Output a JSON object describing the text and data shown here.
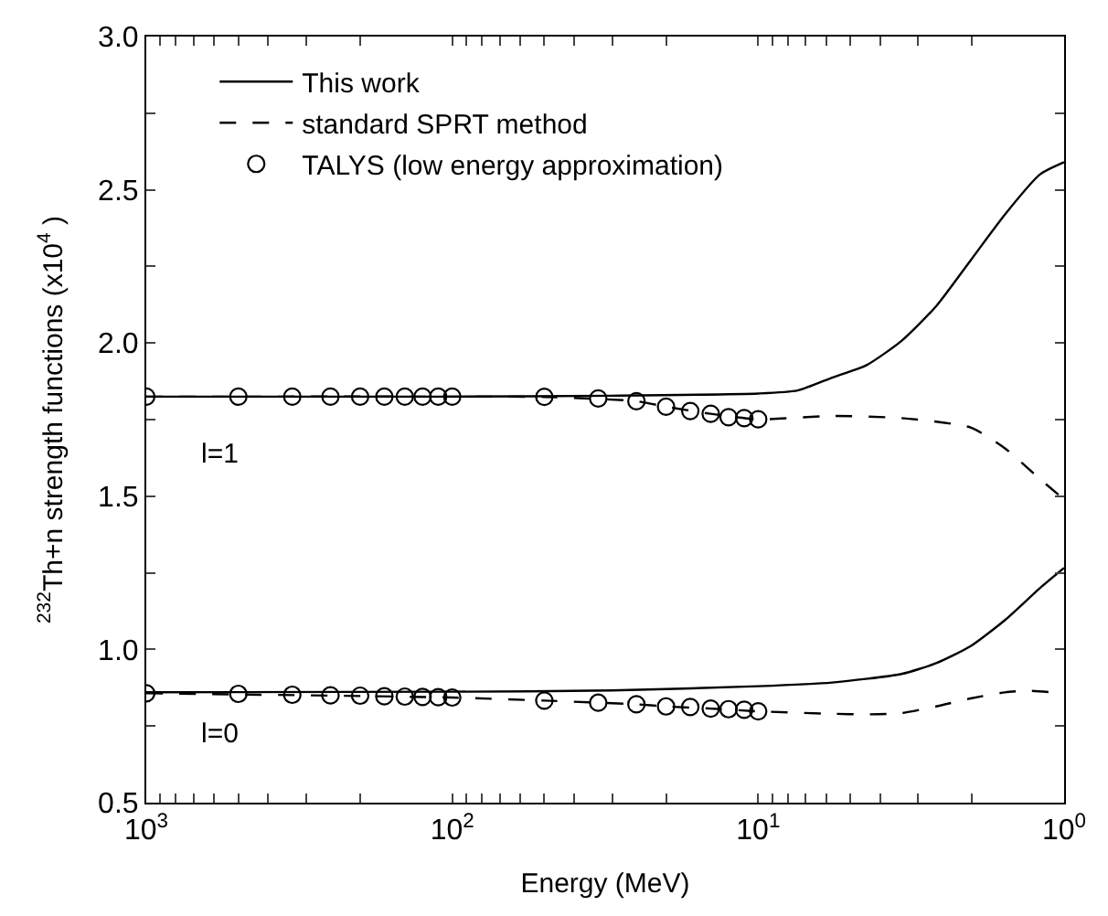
{
  "chart_data": {
    "type": "line",
    "xlabel": "Energy (MeV)",
    "ylabel": "$^{232}$Th+n strength functions (x10$^{4}$ )",
    "log": "x",
    "xlim": [
      1000,
      1
    ],
    "ylim": [
      0.5,
      3.0
    ],
    "xticks": [
      {
        "value": 1000,
        "label": "10$^{3}$"
      },
      {
        "value": 900,
        "label": null
      },
      {
        "value": 800,
        "label": null
      },
      {
        "value": 700,
        "label": null
      },
      {
        "value": 600,
        "label": null
      },
      {
        "value": 500,
        "label": null
      },
      {
        "value": 400,
        "label": null
      },
      {
        "value": 300,
        "label": null
      },
      {
        "value": 200,
        "label": null
      },
      {
        "value": 100,
        "label": "10$^{2}$"
      },
      {
        "value": 90,
        "label": null
      },
      {
        "value": 80,
        "label": null
      },
      {
        "value": 70,
        "label": null
      },
      {
        "value": 60,
        "label": null
      },
      {
        "value": 50,
        "label": null
      },
      {
        "value": 40,
        "label": null
      },
      {
        "value": 30,
        "label": null
      },
      {
        "value": 20,
        "label": null
      },
      {
        "value": 10,
        "label": "10$^{1}$"
      },
      {
        "value": 9,
        "label": null
      },
      {
        "value": 8,
        "label": null
      },
      {
        "value": 7,
        "label": null
      },
      {
        "value": 6,
        "label": null
      },
      {
        "value": 5,
        "label": null
      },
      {
        "value": 4,
        "label": null
      },
      {
        "value": 3,
        "label": null
      },
      {
        "value": 2,
        "label": null
      },
      {
        "value": 1,
        "label": "10$^{0}$"
      }
    ],
    "yticks": [
      {
        "value": 0.5,
        "label": "0.5"
      },
      {
        "value": 0.75,
        "label": null
      },
      {
        "value": 1.0,
        "label": "1.0"
      },
      {
        "value": 1.25,
        "label": null
      },
      {
        "value": 1.5,
        "label": "1.5"
      },
      {
        "value": 1.75,
        "label": null
      },
      {
        "value": 2.0,
        "label": "2.0"
      },
      {
        "value": 2.25,
        "label": null
      },
      {
        "value": 2.5,
        "label": "2.5"
      },
      {
        "value": 2.75,
        "label": null
      },
      {
        "value": 3.0,
        "label": "3.0"
      }
    ],
    "legend": "top left",
    "annotations": [
      "l=1",
      "l=0"
    ],
    "series": [
      {
        "name": "This work",
        "line_style": "solid",
        "marker": "none",
        "color": "#000000",
        "x": [
          1000,
          100,
          30,
          10,
          7.43,
          5.73,
          4.42,
          3.4,
          2.62,
          2.02,
          1.56,
          1.2,
          1
        ],
        "values": [
          1.825,
          1.825,
          1.828,
          1.835,
          1.845,
          1.887,
          1.928,
          2.007,
          2.12,
          2.27,
          2.42,
          2.55,
          2.59
        ]
      },
      {
        "name": "standard SPRT method",
        "line_style": "dashed",
        "marker": "none",
        "color": "#000000",
        "x": [
          1000,
          100,
          50,
          25,
          20,
          14.3,
          10,
          5.73,
          3.4,
          2.02,
          1.56,
          1.2,
          1
        ],
        "values": [
          1.825,
          1.825,
          1.824,
          1.81,
          1.792,
          1.769,
          1.751,
          1.762,
          1.755,
          1.724,
          1.656,
          1.556,
          1.49
        ]
      },
      {
        "name": "TALYS (low energy approximation)",
        "type": "scatter",
        "marker": "circle",
        "color": "#000000",
        "x": [
          1000,
          500,
          333.3,
          250,
          200,
          166.7,
          142.9,
          125,
          111.1,
          100,
          50,
          33.33,
          25,
          20,
          16.67,
          14.29,
          12.5,
          11.11,
          10
        ],
        "values": [
          1.825,
          1.825,
          1.825,
          1.825,
          1.825,
          1.825,
          1.825,
          1.825,
          1.825,
          1.825,
          1.824,
          1.819,
          1.81,
          1.792,
          1.778,
          1.769,
          1.758,
          1.755,
          1.751
        ]
      },
      {
        "line_style": "solid",
        "marker": "none",
        "color": "#000000",
        "x": [
          1000,
          100,
          30,
          10,
          5.73,
          3.4,
          2.62,
          2.02,
          1.56,
          1.2,
          1
        ],
        "values": [
          0.86,
          0.862,
          0.866,
          0.88,
          0.892,
          0.92,
          0.955,
          1.011,
          1.096,
          1.2,
          1.266
        ]
      },
      {
        "line_style": "dashed",
        "marker": "none",
        "color": "#000000",
        "x": [
          1000,
          100,
          50,
          25,
          20,
          14.3,
          10,
          5.73,
          4.42,
          3.4,
          2.62,
          2.02,
          1.56,
          1.3,
          1
        ],
        "values": [
          0.857,
          0.843,
          0.833,
          0.821,
          0.814,
          0.807,
          0.798,
          0.79,
          0.788,
          0.792,
          0.814,
          0.84,
          0.86,
          0.865,
          0.857
        ]
      },
      {
        "type": "scatter",
        "marker": "circle",
        "color": "#000000",
        "x": [
          1000,
          500,
          333.3,
          250,
          200,
          166.7,
          142.9,
          125,
          111.1,
          100,
          50,
          33.33,
          25,
          20,
          16.67,
          14.29,
          12.5,
          11.11,
          10
        ],
        "values": [
          0.857,
          0.855,
          0.852,
          0.85,
          0.849,
          0.847,
          0.846,
          0.845,
          0.844,
          0.843,
          0.833,
          0.826,
          0.821,
          0.814,
          0.812,
          0.807,
          0.805,
          0.803,
          0.798
        ]
      }
    ]
  }
}
